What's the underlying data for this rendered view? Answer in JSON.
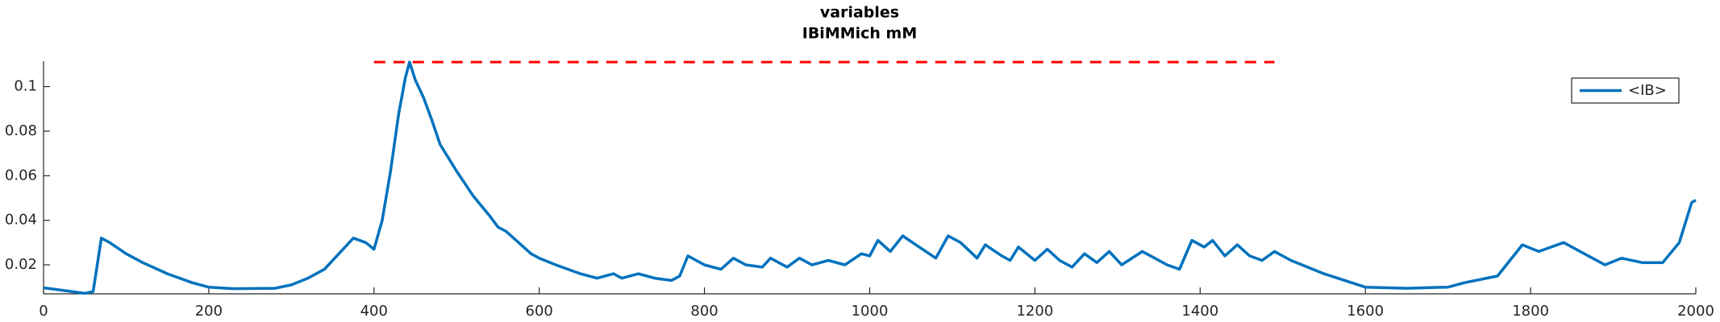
{
  "chart_data": {
    "type": "line",
    "title": "variables",
    "subtitle": "IBiMMich mM",
    "x": [
      0,
      50,
      60,
      70,
      80,
      100,
      120,
      150,
      180,
      200,
      230,
      280,
      300,
      320,
      340,
      360,
      375,
      390,
      400,
      410,
      420,
      430,
      438,
      443,
      450,
      460,
      470,
      480,
      500,
      520,
      540,
      550,
      560,
      575,
      590,
      600,
      620,
      650,
      670,
      690,
      700,
      720,
      740,
      760,
      770,
      780,
      790,
      800,
      820,
      835,
      850,
      870,
      880,
      900,
      915,
      930,
      950,
      970,
      990,
      1000,
      1010,
      1025,
      1040,
      1060,
      1080,
      1095,
      1110,
      1130,
      1140,
      1160,
      1170,
      1180,
      1200,
      1215,
      1230,
      1245,
      1260,
      1275,
      1290,
      1305,
      1330,
      1345,
      1360,
      1375,
      1390,
      1405,
      1415,
      1430,
      1445,
      1460,
      1475,
      1490,
      1510,
      1550,
      1600,
      1650,
      1700,
      1720,
      1760,
      1790,
      1810,
      1840,
      1870,
      1890,
      1910,
      1935,
      1960,
      1980,
      1995,
      2000
    ],
    "series": [
      {
        "name": "<IB>",
        "color": "#0072bd",
        "values": [
          0.0097,
          0.0072,
          0.008,
          0.032,
          0.03,
          0.025,
          0.021,
          0.016,
          0.012,
          0.01,
          0.0093,
          0.0095,
          0.011,
          0.014,
          0.018,
          0.026,
          0.032,
          0.03,
          0.027,
          0.04,
          0.062,
          0.088,
          0.104,
          0.111,
          0.103,
          0.095,
          0.085,
          0.074,
          0.062,
          0.051,
          0.042,
          0.037,
          0.035,
          0.03,
          0.025,
          0.023,
          0.02,
          0.016,
          0.014,
          0.016,
          0.014,
          0.016,
          0.014,
          0.013,
          0.015,
          0.024,
          0.022,
          0.02,
          0.018,
          0.023,
          0.02,
          0.019,
          0.023,
          0.019,
          0.023,
          0.02,
          0.022,
          0.02,
          0.025,
          0.024,
          0.031,
          0.026,
          0.033,
          0.028,
          0.023,
          0.033,
          0.03,
          0.023,
          0.029,
          0.024,
          0.022,
          0.028,
          0.022,
          0.027,
          0.022,
          0.019,
          0.025,
          0.021,
          0.026,
          0.02,
          0.026,
          0.023,
          0.02,
          0.018,
          0.031,
          0.028,
          0.031,
          0.024,
          0.029,
          0.024,
          0.022,
          0.026,
          0.022,
          0.016,
          0.01,
          0.0095,
          0.01,
          0.012,
          0.015,
          0.029,
          0.026,
          0.03,
          0.024,
          0.02,
          0.023,
          0.021,
          0.021,
          0.03,
          0.048,
          0.049
        ]
      }
    ],
    "reference_line": {
      "x": [
        400,
        1490
      ],
      "value": 0.111,
      "color": "#ff0000"
    },
    "xlim": [
      0,
      2000
    ],
    "xticks": [
      0,
      200,
      400,
      600,
      800,
      1000,
      1200,
      1400,
      1600,
      1800,
      2000
    ],
    "ylim": [
      0.007,
      0.1114
    ],
    "yticks": [
      0.02,
      0.04,
      0.06,
      0.08,
      0.1
    ],
    "grid": false,
    "legend": "upper right"
  }
}
